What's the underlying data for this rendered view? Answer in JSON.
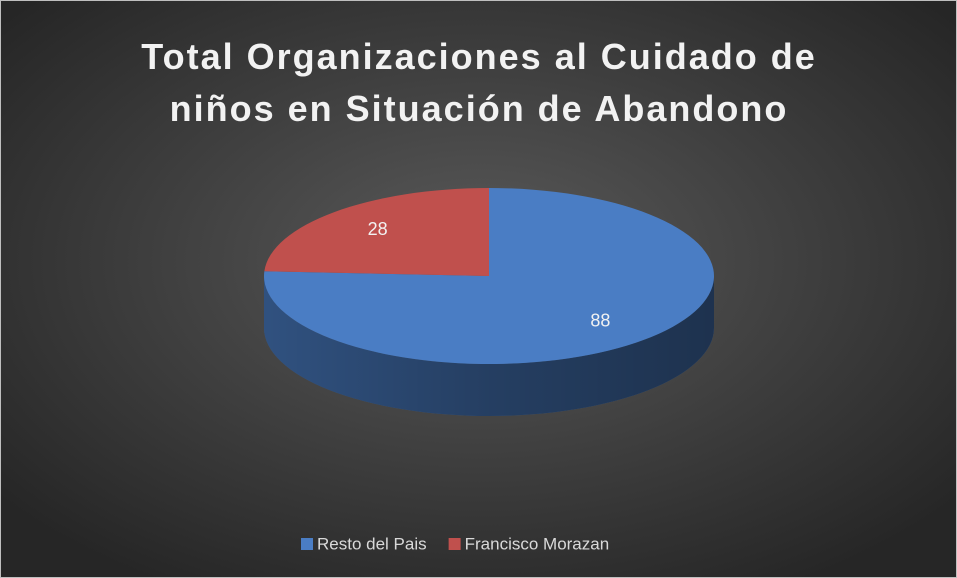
{
  "chart_data": {
    "type": "pie3d",
    "title": "Total Organizaciones al Cuidado de niños en Situación de Abandono",
    "categories": [
      "Resto del Pais",
      "Francisco Morazan"
    ],
    "values": [
      88,
      28
    ],
    "colors": [
      "#4a7dc4",
      "#c0504d"
    ],
    "legend": "bottom"
  }
}
